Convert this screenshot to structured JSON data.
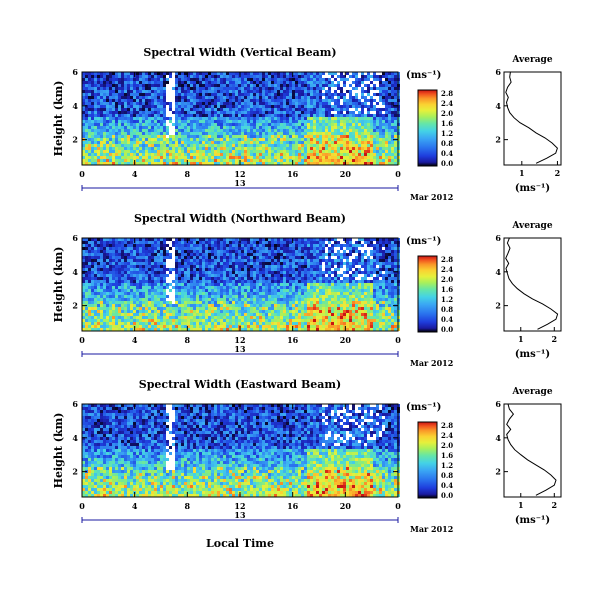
{
  "date_label": "Mar 2012",
  "x_axis_title": "Local Time",
  "x_ticks": [
    "0",
    "4",
    "8",
    "12",
    "16",
    "20",
    "0"
  ],
  "day_label": "13",
  "y_axis_title": "Height (km)",
  "y_ticks": [
    "2",
    "4",
    "6"
  ],
  "colorbar_unit": "(ms⁻¹)",
  "avg_title": "Average",
  "avg_xlabel": "(ms⁻¹)",
  "colors": {
    "scale": [
      "#000000",
      "#1a1aa0",
      "#1e3cdc",
      "#2a73ee",
      "#3aa6f4",
      "#44d2e6",
      "#66e6a6",
      "#aaf05a",
      "#e6f03c",
      "#fad232",
      "#fa9628",
      "#f0501e",
      "#c81414"
    ],
    "baseline_arrow": "#1a1aa0"
  },
  "chart_data": [
    {
      "type": "heatmap",
      "title": "Spectral Width (Vertical Beam)",
      "xlabel": "Local Time",
      "ylabel": "Height (km)",
      "xlim": [
        0,
        24
      ],
      "ylim": [
        0.5,
        6
      ],
      "colorbar": {
        "ticks": [
          "0.0",
          "0.4",
          "0.8",
          "1.2",
          "1.6",
          "2.0",
          "2.4",
          "2.8"
        ],
        "range": [
          0,
          2.8
        ]
      },
      "average_profile": {
        "xticks": [
          "1",
          "2"
        ],
        "yticks": [
          "2",
          "4",
          "6"
        ],
        "xlim": [
          0.5,
          2.1
        ],
        "ylim": [
          0.5,
          6
        ],
        "height_km": [
          0.6,
          0.9,
          1.2,
          1.5,
          1.8,
          2.1,
          2.4,
          2.7,
          3.0,
          3.3,
          3.6,
          3.9,
          4.2,
          4.5,
          4.8,
          5.1,
          5.4,
          5.7,
          6.0
        ],
        "width": [
          1.4,
          1.7,
          1.95,
          2.0,
          1.85,
          1.65,
          1.4,
          1.2,
          0.95,
          0.78,
          0.66,
          0.6,
          0.57,
          0.62,
          0.55,
          0.6,
          0.7,
          0.66,
          0.68
        ]
      }
    },
    {
      "type": "heatmap",
      "title": "Spectral Width (Northward Beam)",
      "xlabel": "Local Time",
      "ylabel": "Height (km)",
      "xlim": [
        0,
        24
      ],
      "ylim": [
        0.5,
        6
      ],
      "colorbar": {
        "ticks": [
          "0.0",
          "0.4",
          "0.8",
          "1.2",
          "1.6",
          "2.0",
          "2.4",
          "2.8"
        ],
        "range": [
          0,
          2.8
        ]
      },
      "average_profile": {
        "xticks": [
          "1",
          "2"
        ],
        "yticks": [
          "2",
          "4",
          "6"
        ],
        "xlim": [
          0.5,
          2.2
        ],
        "ylim": [
          0.5,
          6
        ],
        "height_km": [
          0.6,
          0.9,
          1.2,
          1.5,
          1.8,
          2.1,
          2.4,
          2.7,
          3.0,
          3.3,
          3.6,
          3.9,
          4.2,
          4.5,
          4.8,
          5.1,
          5.4,
          5.7,
          6.0
        ],
        "width": [
          1.5,
          1.8,
          2.05,
          2.1,
          1.9,
          1.65,
          1.35,
          1.1,
          0.9,
          0.75,
          0.65,
          0.6,
          0.56,
          0.64,
          0.55,
          0.62,
          0.68,
          0.6,
          0.66
        ]
      }
    },
    {
      "type": "heatmap",
      "title": "Spectral Width (Eastward Beam)",
      "xlabel": "Local Time",
      "ylabel": "Height (km)",
      "xlim": [
        0,
        24
      ],
      "ylim": [
        0.5,
        6
      ],
      "colorbar": {
        "ticks": [
          "0.0",
          "0.4",
          "0.8",
          "1.2",
          "1.6",
          "2.0",
          "2.4",
          "2.8"
        ],
        "range": [
          0,
          2.8
        ]
      },
      "average_profile": {
        "xticks": [
          "1",
          "2"
        ],
        "yticks": [
          "2",
          "4",
          "6"
        ],
        "xlim": [
          0.5,
          2.2
        ],
        "ylim": [
          0.5,
          6
        ],
        "height_km": [
          0.6,
          0.9,
          1.2,
          1.5,
          1.8,
          2.1,
          2.4,
          2.7,
          3.0,
          3.3,
          3.6,
          3.9,
          4.2,
          4.5,
          4.8,
          5.1,
          5.4,
          5.7,
          6.0
        ],
        "width": [
          1.45,
          1.75,
          2.0,
          2.05,
          1.9,
          1.7,
          1.45,
          1.2,
          1.0,
          0.82,
          0.7,
          0.62,
          0.58,
          0.7,
          0.58,
          0.66,
          0.78,
          0.66,
          0.62
        ]
      }
    }
  ]
}
